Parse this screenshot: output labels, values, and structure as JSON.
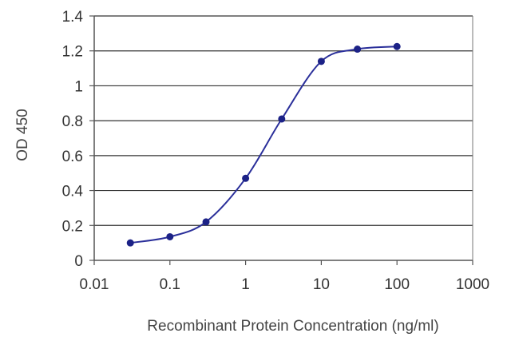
{
  "chart_data": {
    "type": "line",
    "title": "",
    "xlabel": "Recombinant Protein Concentration (ng/ml)",
    "ylabel": "OD 450",
    "x_scale": "log",
    "xlim": [
      0.01,
      1000
    ],
    "ylim": [
      0,
      1.4
    ],
    "x_ticks": [
      "0.01",
      "0.1",
      "1",
      "10",
      "100",
      "1000"
    ],
    "y_ticks": [
      "0",
      "0.2",
      "0.4",
      "0.6",
      "0.8",
      "1",
      "1.2",
      "1.4"
    ],
    "grid": "horizontal",
    "series": [
      {
        "x": [
          0.03,
          0.1,
          0.3,
          1,
          3,
          10,
          30,
          100
        ],
        "y": [
          0.1,
          0.135,
          0.22,
          0.47,
          0.81,
          1.14,
          1.21,
          1.225
        ]
      }
    ],
    "colors": {
      "line": "#2a2f9a",
      "marker": "#1c2287",
      "grid": "#333333",
      "axis": "#555555"
    }
  }
}
